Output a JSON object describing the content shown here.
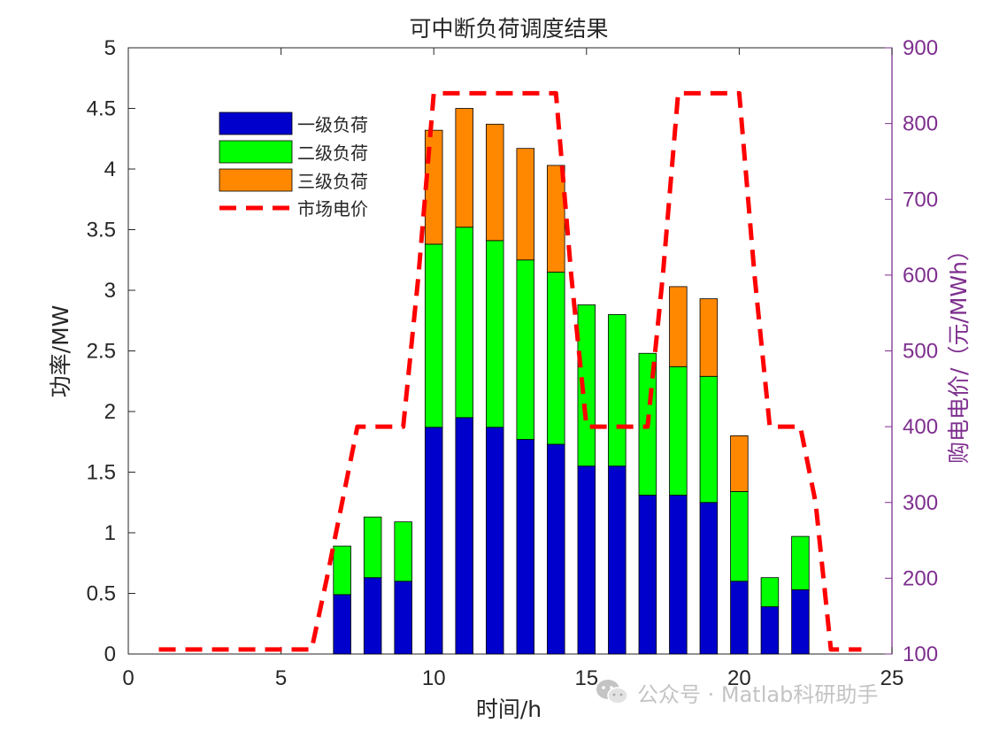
{
  "chart_data": {
    "type": "bar",
    "subtype": "stacked-bar-with-line",
    "title": "可中断负荷调度结果",
    "xlabel": "时间/h",
    "ylabel": "功率/MW",
    "ylabel_right": "购电电价/（元/MWh）",
    "xlim": [
      0,
      25
    ],
    "ylim": [
      0,
      5
    ],
    "ylim_right": [
      100,
      900
    ],
    "x_ticks": [
      "0",
      "5",
      "10",
      "15",
      "20",
      "25"
    ],
    "y_ticks": [
      "0",
      "0.5",
      "1",
      "1.5",
      "2",
      "2.5",
      "3",
      "3.5",
      "4",
      "4.5",
      "5"
    ],
    "y_ticks_right": [
      "100",
      "200",
      "300",
      "400",
      "500",
      "600",
      "700",
      "800",
      "900"
    ],
    "legend_position": "top-left",
    "hours": [
      7,
      8,
      9,
      10,
      11,
      12,
      13,
      14,
      15,
      16,
      17,
      18,
      19,
      20,
      21,
      22
    ],
    "series": [
      {
        "name": "一级负荷",
        "color": "#0000cc",
        "values": [
          0.49,
          0.63,
          0.6,
          1.87,
          1.95,
          1.87,
          1.77,
          1.73,
          1.55,
          1.55,
          1.31,
          1.31,
          1.25,
          0.6,
          0.39,
          0.53
        ]
      },
      {
        "name": "二级负荷",
        "color": "#00ff00",
        "values": [
          0.4,
          0.5,
          0.49,
          1.51,
          1.57,
          1.54,
          1.48,
          1.42,
          1.33,
          1.25,
          1.17,
          1.06,
          1.04,
          0.74,
          0.24,
          0.44
        ]
      },
      {
        "name": "三级负荷",
        "color": "#ff8800",
        "values": [
          0,
          0,
          0,
          0.94,
          0.98,
          0.96,
          0.92,
          0.88,
          0,
          0,
          0,
          0.66,
          0.64,
          0.46,
          0,
          0
        ]
      }
    ],
    "price_line": {
      "name": "市场电价",
      "color": "#ff0000",
      "x": [
        1,
        6,
        6.5,
        7,
        7.5,
        8,
        9,
        9.5,
        10,
        14,
        14.5,
        15,
        17,
        17.5,
        18,
        20,
        20.5,
        21,
        22,
        22.5,
        23,
        24
      ],
      "y": [
        106,
        106,
        200,
        300,
        400,
        400,
        400,
        600,
        840,
        840,
        600,
        400,
        400,
        600,
        840,
        840,
        600,
        400,
        400,
        300,
        106,
        106
      ]
    }
  },
  "watermark": {
    "text": "公众号 · Matlab科研助手",
    "icon": "wechat-icon",
    "color": "#c4c4c4"
  }
}
